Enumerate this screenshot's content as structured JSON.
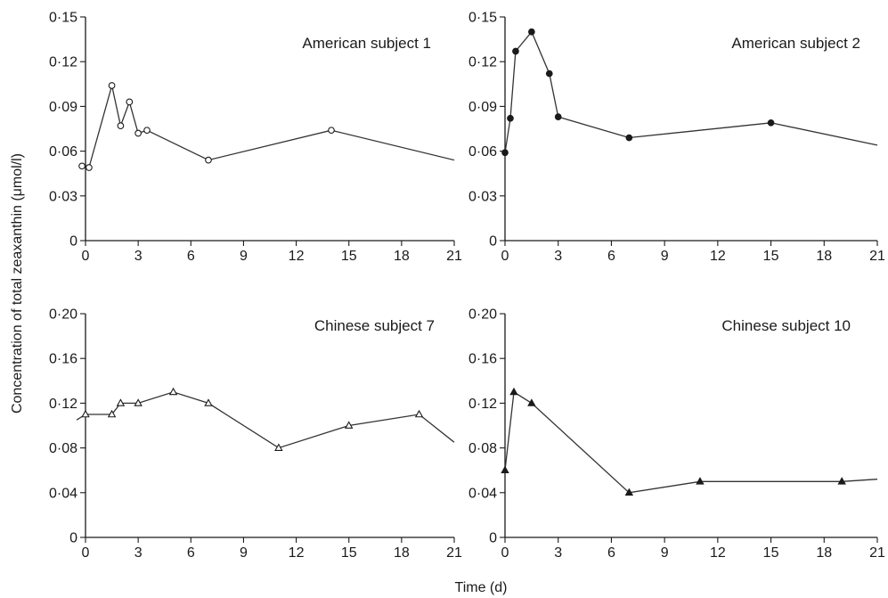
{
  "figure": {
    "ylabel": "Concentration of total zeaxanthin (μmol/l)",
    "xlabel": "Time (d)"
  },
  "chart_data": [
    {
      "type": "line",
      "title": "American subject 1",
      "xlim": [
        0,
        21
      ],
      "ylim": [
        0,
        0.15
      ],
      "x_ticks": [
        0,
        3,
        6,
        9,
        12,
        15,
        18,
        21
      ],
      "x_tick_labels": [
        "0",
        "3",
        "6",
        "9",
        "12",
        "15",
        "18",
        "21"
      ],
      "y_ticks": [
        0,
        0.03,
        0.06,
        0.09,
        0.12,
        0.15
      ],
      "y_tick_labels": [
        "0",
        "0·03",
        "0·06",
        "0·09",
        "0·12",
        "0·15"
      ],
      "marker": "open-circle",
      "series": [
        {
          "x": [
            -0.2,
            0.2,
            1.5,
            2,
            2.5,
            3,
            3.5,
            7,
            14,
            21
          ],
          "y": [
            0.05,
            0.049,
            0.104,
            0.077,
            0.093,
            0.072,
            0.074,
            0.054,
            0.074,
            0.054
          ],
          "markers": [
            true,
            true,
            true,
            true,
            true,
            true,
            true,
            true,
            true,
            false
          ]
        }
      ]
    },
    {
      "type": "line",
      "title": "American subject 2",
      "xlim": [
        0,
        21
      ],
      "ylim": [
        0,
        0.15
      ],
      "x_ticks": [
        0,
        3,
        6,
        9,
        12,
        15,
        18,
        21
      ],
      "x_tick_labels": [
        "0",
        "3",
        "6",
        "9",
        "12",
        "15",
        "18",
        "21"
      ],
      "y_ticks": [
        0,
        0.03,
        0.06,
        0.09,
        0.12,
        0.15
      ],
      "y_tick_labels": [
        "0",
        "0·03",
        "0·06",
        "0·09",
        "0·12",
        "0·15"
      ],
      "marker": "filled-circle",
      "series": [
        {
          "x": [
            0,
            0.3,
            0.6,
            1.5,
            2.5,
            3,
            7,
            15,
            21
          ],
          "y": [
            0.059,
            0.082,
            0.127,
            0.14,
            0.112,
            0.083,
            0.069,
            0.079,
            0.064
          ],
          "markers": [
            true,
            true,
            true,
            true,
            true,
            true,
            true,
            true,
            false
          ]
        }
      ]
    },
    {
      "type": "line",
      "title": "Chinese subject 7",
      "xlim": [
        0,
        21
      ],
      "ylim": [
        0,
        0.2
      ],
      "x_ticks": [
        0,
        3,
        6,
        9,
        12,
        15,
        18,
        21
      ],
      "x_tick_labels": [
        "0",
        "3",
        "6",
        "9",
        "12",
        "15",
        "18",
        "21"
      ],
      "y_ticks": [
        0,
        0.04,
        0.08,
        0.12,
        0.16,
        0.2
      ],
      "y_tick_labels": [
        "0",
        "0·04",
        "0·08",
        "0·12",
        "0·16",
        "0·20"
      ],
      "marker": "open-triangle",
      "series": [
        {
          "x": [
            -0.5,
            0,
            1.5,
            2,
            3,
            5,
            7,
            11,
            15,
            19,
            21
          ],
          "y": [
            0.105,
            0.11,
            0.11,
            0.12,
            0.12,
            0.13,
            0.12,
            0.08,
            0.1,
            0.11,
            0.085
          ],
          "markers": [
            false,
            true,
            true,
            true,
            true,
            true,
            true,
            true,
            true,
            true,
            false
          ]
        }
      ]
    },
    {
      "type": "line",
      "title": "Chinese subject 10",
      "xlim": [
        0,
        21
      ],
      "ylim": [
        0,
        0.2
      ],
      "x_ticks": [
        0,
        3,
        6,
        9,
        12,
        15,
        18,
        21
      ],
      "x_tick_labels": [
        "0",
        "3",
        "6",
        "9",
        "12",
        "15",
        "18",
        "21"
      ],
      "y_ticks": [
        0,
        0.04,
        0.08,
        0.12,
        0.16,
        0.2
      ],
      "y_tick_labels": [
        "0",
        "0·04",
        "0·08",
        "0·12",
        "0·16",
        "0·20"
      ],
      "marker": "filled-triangle",
      "series": [
        {
          "x": [
            0,
            0.5,
            1.5,
            7,
            11,
            19,
            21
          ],
          "y": [
            0.06,
            0.13,
            0.12,
            0.04,
            0.05,
            0.05,
            0.052
          ],
          "markers": [
            true,
            true,
            true,
            true,
            true,
            true,
            false
          ]
        }
      ]
    }
  ]
}
